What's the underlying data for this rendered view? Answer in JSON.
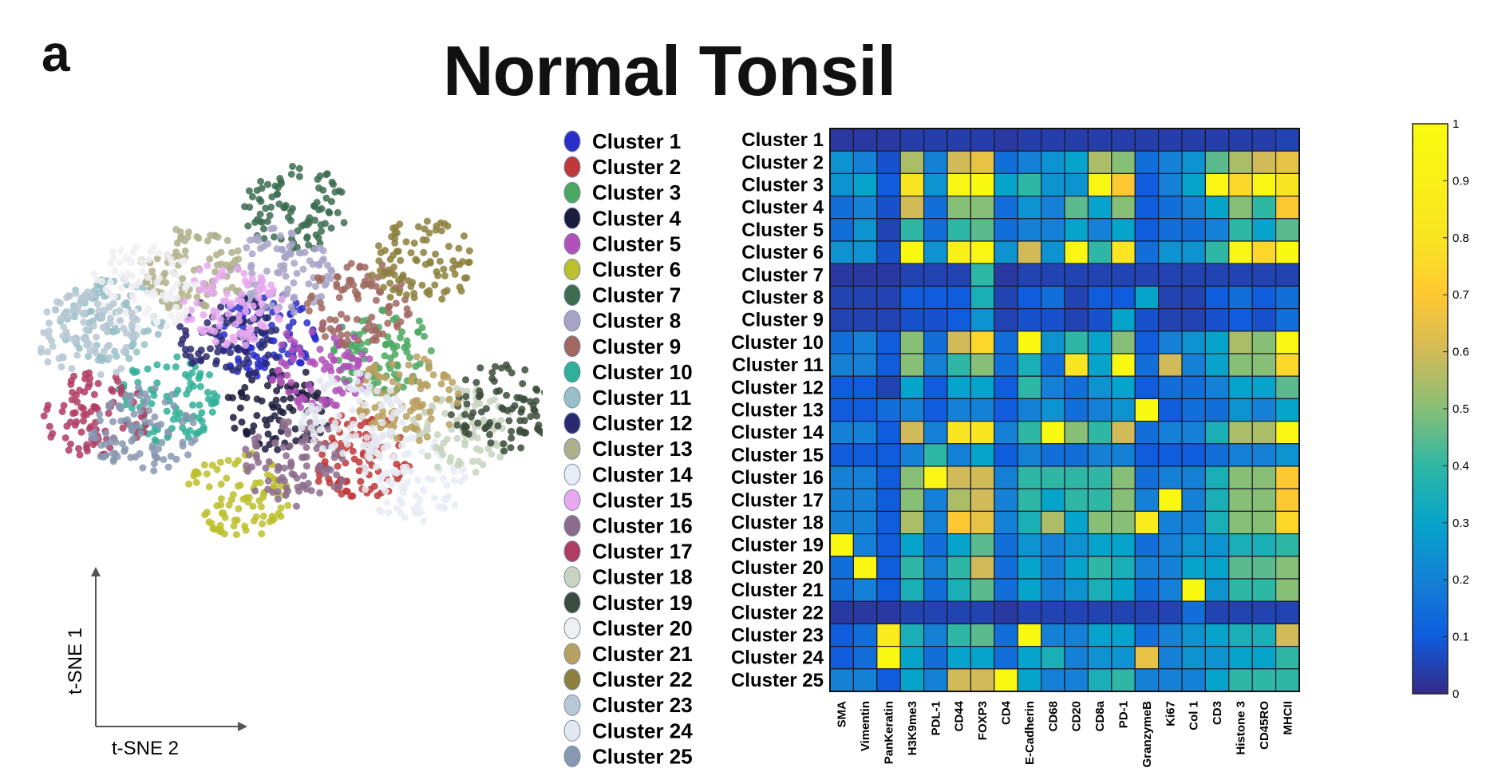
{
  "panel_label": "a",
  "title": "Normal Tonsil",
  "chart_data": [
    {
      "type": "scatter",
      "xlabel": "t-SNE 2",
      "ylabel": "t-SNE 1",
      "legend_placement": "right",
      "legend": [
        "Cluster 1",
        "Cluster 2",
        "Cluster 3",
        "Cluster 4",
        "Cluster 5",
        "Cluster 6",
        "Cluster 7",
        "Cluster 8",
        "Cluster 9",
        "Cluster 10",
        "Cluster 11",
        "Cluster 12",
        "Cluster 13",
        "Cluster 14",
        "Cluster 15",
        "Cluster 16",
        "Cluster 17",
        "Cluster 18",
        "Cluster 19",
        "Cluster 20",
        "Cluster 21",
        "Cluster 22",
        "Cluster 23",
        "Cluster 24",
        "Cluster 25"
      ],
      "colors": [
        "#2a2ec8",
        "#c0383a",
        "#4aa860",
        "#1c1c3c",
        "#b050b8",
        "#bcc02c",
        "#3c6c50",
        "#a8a4c8",
        "#a06860",
        "#30b098",
        "#98c0c8",
        "#2a2a70",
        "#b0b08c",
        "#e8ecf4",
        "#e8a8f0",
        "#8c6c8c",
        "#b03c64",
        "#c8d4c0",
        "#3c4c3c",
        "#f0f0f4",
        "#b8a060",
        "#8c803c",
        "#b8c8d4",
        "#e4e8f0",
        "#8898b0"
      ],
      "clusters": [
        {
          "name": "Cluster 1",
          "cx": -5,
          "cy": 6
        },
        {
          "name": "Cluster 2",
          "cx": 7,
          "cy": -9
        },
        {
          "name": "Cluster 3",
          "cx": 10,
          "cy": 4
        },
        {
          "name": "Cluster 4",
          "cx": -3,
          "cy": -3
        },
        {
          "name": "Cluster 5",
          "cx": 2,
          "cy": 2
        },
        {
          "name": "Cluster 6",
          "cx": -8,
          "cy": -14
        },
        {
          "name": "Cluster 7",
          "cx": -1,
          "cy": 22
        },
        {
          "name": "Cluster 8",
          "cx": -3,
          "cy": 14
        },
        {
          "name": "Cluster 9",
          "cx": 7,
          "cy": 10
        },
        {
          "name": "Cluster 10",
          "cx": -17,
          "cy": -2
        },
        {
          "name": "Cluster 11",
          "cx": -24,
          "cy": 8
        },
        {
          "name": "Cluster 12",
          "cx": -9,
          "cy": 6
        },
        {
          "name": "Cluster 13",
          "cx": -14,
          "cy": 14
        },
        {
          "name": "Cluster 14",
          "cx": 14,
          "cy": -12
        },
        {
          "name": "Cluster 15",
          "cx": -9,
          "cy": 10
        },
        {
          "name": "Cluster 16",
          "cx": -1,
          "cy": -10
        },
        {
          "name": "Cluster 17",
          "cx": -26,
          "cy": -4
        },
        {
          "name": "Cluster 18",
          "cx": 20,
          "cy": -6
        },
        {
          "name": "Cluster 19",
          "cx": 25,
          "cy": -3
        },
        {
          "name": "Cluster 20",
          "cx": -20,
          "cy": 12
        },
        {
          "name": "Cluster 21",
          "cx": 13,
          "cy": -2
        },
        {
          "name": "Cluster 22",
          "cx": 15,
          "cy": 15
        },
        {
          "name": "Cluster 23",
          "cx": -27,
          "cy": 6
        },
        {
          "name": "Cluster 24",
          "cx": 6,
          "cy": -4
        },
        {
          "name": "Cluster 25",
          "cx": -20,
          "cy": -6
        }
      ],
      "xlim": [
        -30,
        30
      ],
      "ylim": [
        -30,
        30
      ]
    },
    {
      "type": "heatmap",
      "rows": [
        "Cluster 1",
        "Cluster 2",
        "Cluster 3",
        "Cluster 4",
        "Cluster 5",
        "Cluster 6",
        "Cluster 7",
        "Cluster 8",
        "Cluster 9",
        "Cluster 10",
        "Cluster 11",
        "Cluster 12",
        "Cluster 13",
        "Cluster 14",
        "Cluster 15",
        "Cluster 16",
        "Cluster 17",
        "Cluster 18",
        "Cluster 19",
        "Cluster 20",
        "Cluster 21",
        "Cluster 22",
        "Cluster 23",
        "Cluster 24",
        "Cluster 25"
      ],
      "columns": [
        "SMA",
        "Vimentin",
        "PanKeratin",
        "H3K9me3",
        "PDL-1",
        "CD44",
        "FOXP3",
        "CD4",
        "E-Cadherin",
        "CD68",
        "CD20",
        "CD8a",
        "PD-1",
        "GranzymeB",
        "Ki67",
        "Col 1",
        "CD3",
        "Histone 3",
        "CD45RO",
        "MHCII"
      ],
      "values": [
        [
          0.03,
          0.03,
          0.03,
          0.04,
          0.04,
          0.04,
          0.04,
          0.03,
          0.04,
          0.04,
          0.04,
          0.04,
          0.04,
          0.04,
          0.04,
          0.04,
          0.04,
          0.04,
          0.04,
          0.05
        ],
        [
          0.25,
          0.2,
          0.08,
          0.55,
          0.2,
          0.6,
          0.65,
          0.15,
          0.2,
          0.25,
          0.3,
          0.55,
          0.5,
          0.15,
          0.2,
          0.25,
          0.45,
          0.55,
          0.6,
          0.65
        ],
        [
          0.25,
          0.3,
          0.1,
          0.8,
          0.25,
          0.95,
          0.97,
          0.3,
          0.4,
          0.25,
          0.25,
          0.95,
          0.7,
          0.1,
          0.2,
          0.3,
          0.95,
          0.75,
          0.95,
          0.8
        ],
        [
          0.15,
          0.2,
          0.08,
          0.6,
          0.15,
          0.5,
          0.5,
          0.15,
          0.25,
          0.2,
          0.45,
          0.3,
          0.5,
          0.1,
          0.15,
          0.2,
          0.3,
          0.5,
          0.4,
          0.7
        ],
        [
          0.15,
          0.25,
          0.05,
          0.4,
          0.15,
          0.4,
          0.45,
          0.15,
          0.2,
          0.2,
          0.3,
          0.2,
          0.3,
          0.1,
          0.15,
          0.15,
          0.2,
          0.4,
          0.3,
          0.45
        ],
        [
          0.25,
          0.25,
          0.08,
          0.97,
          0.25,
          0.9,
          0.95,
          0.25,
          0.6,
          0.25,
          0.95,
          0.4,
          0.8,
          0.15,
          0.25,
          0.25,
          0.4,
          0.95,
          0.75,
          0.97
        ],
        [
          0.03,
          0.03,
          0.03,
          0.05,
          0.05,
          0.05,
          0.4,
          0.03,
          0.05,
          0.05,
          0.05,
          0.05,
          0.05,
          0.05,
          0.05,
          0.05,
          0.05,
          0.05,
          0.05,
          0.05
        ],
        [
          0.05,
          0.05,
          0.05,
          0.1,
          0.1,
          0.1,
          0.35,
          0.05,
          0.1,
          0.15,
          0.05,
          0.1,
          0.1,
          0.3,
          0.05,
          0.05,
          0.1,
          0.15,
          0.1,
          0.15
        ],
        [
          0.05,
          0.05,
          0.05,
          0.08,
          0.08,
          0.1,
          0.25,
          0.05,
          0.08,
          0.08,
          0.05,
          0.08,
          0.3,
          0.08,
          0.05,
          0.05,
          0.08,
          0.1,
          0.08,
          0.15
        ],
        [
          0.15,
          0.2,
          0.1,
          0.5,
          0.15,
          0.6,
          0.75,
          0.15,
          0.97,
          0.25,
          0.4,
          0.3,
          0.5,
          0.1,
          0.2,
          0.25,
          0.3,
          0.55,
          0.5,
          0.95
        ],
        [
          0.2,
          0.2,
          0.1,
          0.5,
          0.2,
          0.4,
          0.5,
          0.15,
          0.35,
          0.15,
          0.8,
          0.3,
          0.97,
          0.15,
          0.6,
          0.2,
          0.3,
          0.5,
          0.5,
          0.75
        ],
        [
          0.1,
          0.1,
          0.05,
          0.3,
          0.1,
          0.3,
          0.3,
          0.1,
          0.4,
          0.2,
          0.15,
          0.25,
          0.3,
          0.1,
          0.15,
          0.15,
          0.2,
          0.3,
          0.3,
          0.45
        ],
        [
          0.1,
          0.1,
          0.15,
          0.2,
          0.1,
          0.2,
          0.2,
          0.1,
          0.2,
          0.25,
          0.15,
          0.2,
          0.25,
          0.97,
          0.1,
          0.15,
          0.15,
          0.25,
          0.2,
          0.3
        ],
        [
          0.2,
          0.2,
          0.1,
          0.6,
          0.2,
          0.8,
          0.8,
          0.2,
          0.4,
          0.97,
          0.5,
          0.4,
          0.6,
          0.15,
          0.2,
          0.2,
          0.35,
          0.55,
          0.55,
          0.95
        ],
        [
          0.1,
          0.1,
          0.1,
          0.2,
          0.4,
          0.2,
          0.3,
          0.1,
          0.2,
          0.15,
          0.15,
          0.2,
          0.2,
          0.1,
          0.1,
          0.1,
          0.15,
          0.2,
          0.2,
          0.25
        ],
        [
          0.2,
          0.2,
          0.1,
          0.5,
          0.95,
          0.6,
          0.6,
          0.2,
          0.4,
          0.4,
          0.4,
          0.4,
          0.5,
          0.15,
          0.2,
          0.2,
          0.35,
          0.5,
          0.5,
          0.7
        ],
        [
          0.2,
          0.2,
          0.1,
          0.5,
          0.2,
          0.55,
          0.6,
          0.2,
          0.4,
          0.3,
          0.4,
          0.4,
          0.5,
          0.2,
          0.97,
          0.2,
          0.35,
          0.5,
          0.5,
          0.7
        ],
        [
          0.2,
          0.2,
          0.1,
          0.55,
          0.2,
          0.7,
          0.65,
          0.2,
          0.35,
          0.55,
          0.3,
          0.5,
          0.5,
          0.85,
          0.2,
          0.2,
          0.35,
          0.5,
          0.5,
          0.75
        ],
        [
          0.97,
          0.2,
          0.1,
          0.3,
          0.15,
          0.3,
          0.45,
          0.15,
          0.25,
          0.2,
          0.25,
          0.3,
          0.3,
          0.15,
          0.2,
          0.25,
          0.25,
          0.35,
          0.35,
          0.4
        ],
        [
          0.15,
          0.95,
          0.1,
          0.4,
          0.2,
          0.4,
          0.6,
          0.15,
          0.3,
          0.2,
          0.3,
          0.4,
          0.35,
          0.2,
          0.2,
          0.3,
          0.3,
          0.45,
          0.45,
          0.5
        ],
        [
          0.15,
          0.2,
          0.1,
          0.35,
          0.15,
          0.35,
          0.45,
          0.15,
          0.3,
          0.2,
          0.25,
          0.35,
          0.3,
          0.15,
          0.2,
          0.97,
          0.25,
          0.4,
          0.4,
          0.5
        ],
        [
          0.03,
          0.03,
          0.03,
          0.05,
          0.05,
          0.05,
          0.05,
          0.03,
          0.05,
          0.05,
          0.05,
          0.05,
          0.05,
          0.05,
          0.05,
          0.15,
          0.05,
          0.05,
          0.05,
          0.05
        ],
        [
          0.1,
          0.15,
          0.85,
          0.35,
          0.2,
          0.4,
          0.45,
          0.15,
          0.97,
          0.2,
          0.2,
          0.3,
          0.3,
          0.15,
          0.2,
          0.25,
          0.3,
          0.35,
          0.35,
          0.6
        ],
        [
          0.1,
          0.15,
          0.97,
          0.3,
          0.15,
          0.3,
          0.3,
          0.15,
          0.3,
          0.35,
          0.2,
          0.25,
          0.25,
          0.65,
          0.2,
          0.25,
          0.25,
          0.3,
          0.3,
          0.4
        ],
        [
          0.2,
          0.2,
          0.1,
          0.3,
          0.2,
          0.6,
          0.6,
          0.97,
          0.3,
          0.2,
          0.2,
          0.35,
          0.4,
          0.2,
          0.2,
          0.2,
          0.3,
          0.4,
          0.4,
          0.4
        ]
      ],
      "colorbar": {
        "min": 0,
        "max": 1,
        "ticks": [
          "0",
          "0.1",
          "0.2",
          "0.3",
          "0.4",
          "0.5",
          "0.6",
          "0.7",
          "0.8",
          "0.9",
          "1"
        ]
      }
    }
  ]
}
